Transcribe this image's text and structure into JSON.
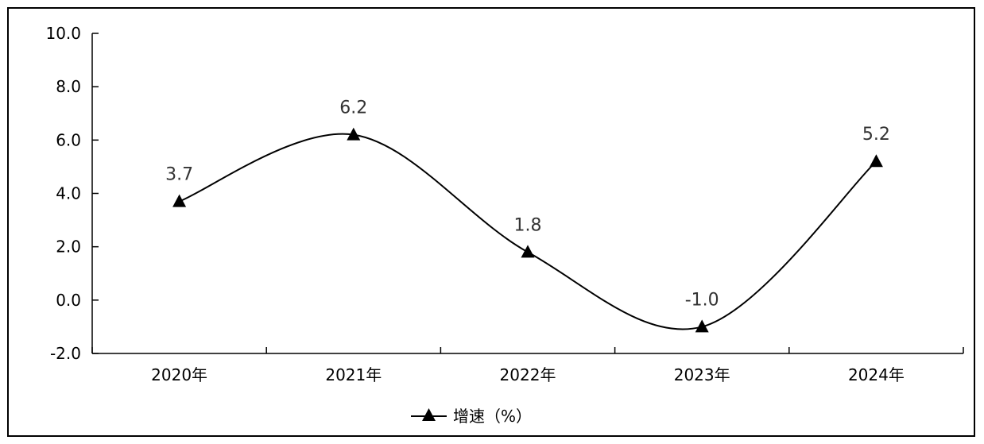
{
  "chart_data": {
    "type": "line",
    "smooth": true,
    "categories": [
      "2020年",
      "2021年",
      "2022年",
      "2023年",
      "2024年"
    ],
    "series": [
      {
        "name": "增速（%）",
        "values": [
          3.7,
          6.2,
          1.8,
          -1.0,
          5.2
        ],
        "marker": "triangle",
        "color": "#000000"
      }
    ],
    "data_labels": [
      "3.7",
      "6.2",
      "1.8",
      "-1.0",
      "5.2"
    ],
    "yticks": [
      "10.0",
      "8.0",
      "6.0",
      "4.0",
      "2.0",
      "0.0",
      "-2.0"
    ],
    "ylim": [
      -2.0,
      10.0
    ],
    "grid": false,
    "legend": "bottom-center"
  }
}
